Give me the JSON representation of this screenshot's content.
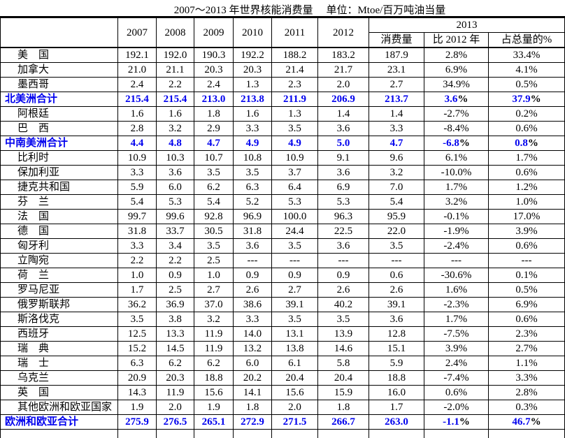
{
  "title": {
    "left": "2007～2013 年世界核能消费量",
    "right": "单位：Mtoe/百万吨油当量"
  },
  "colors": {
    "total_row_text": "#0000EE",
    "total_row_percent_sign": "#000000",
    "grid": "#000000"
  },
  "table": {
    "header": {
      "years": [
        "2007",
        "2008",
        "2009",
        "2010",
        "2011",
        "2012"
      ],
      "group_2013": "2013",
      "sub_columns": [
        "消费量",
        "比 2012 年",
        "占总量的%"
      ]
    },
    "rows": [
      {
        "name": "美　国",
        "total": false,
        "values": [
          "192.1",
          "192.0",
          "190.3",
          "192.2",
          "188.2",
          "183.2",
          "187.9",
          "2.8%",
          "33.4%"
        ]
      },
      {
        "name": "加拿大",
        "total": false,
        "values": [
          "21.0",
          "21.1",
          "20.3",
          "20.3",
          "21.4",
          "21.7",
          "23.1",
          "6.9%",
          "4.1%"
        ]
      },
      {
        "name": "墨西哥",
        "total": false,
        "values": [
          "2.4",
          "2.2",
          "2.4",
          "1.3",
          "2.3",
          "2.0",
          "2.7",
          "34.9%",
          "0.5%"
        ]
      },
      {
        "name": "北美洲合计",
        "total": true,
        "values": [
          "215.4",
          "215.4",
          "213.0",
          "213.8",
          "211.9",
          "206.9",
          "213.7",
          "3.6%",
          "37.9%"
        ]
      },
      {
        "name": "阿根廷",
        "total": false,
        "values": [
          "1.6",
          "1.6",
          "1.8",
          "1.6",
          "1.3",
          "1.4",
          "1.4",
          "-2.7%",
          "0.2%"
        ]
      },
      {
        "name": "巴　西",
        "total": false,
        "values": [
          "2.8",
          "3.2",
          "2.9",
          "3.3",
          "3.5",
          "3.6",
          "3.3",
          "-8.4%",
          "0.6%"
        ]
      },
      {
        "name": "中南美洲合计",
        "total": true,
        "values": [
          "4.4",
          "4.8",
          "4.7",
          "4.9",
          "4.9",
          "5.0",
          "4.7",
          "-6.8%",
          "0.8%"
        ]
      },
      {
        "name": "比利时",
        "total": false,
        "values": [
          "10.9",
          "10.3",
          "10.7",
          "10.8",
          "10.9",
          "9.1",
          "9.6",
          "6.1%",
          "1.7%"
        ]
      },
      {
        "name": "保加利亚",
        "total": false,
        "values": [
          "3.3",
          "3.6",
          "3.5",
          "3.5",
          "3.7",
          "3.6",
          "3.2",
          "-10.0%",
          "0.6%"
        ]
      },
      {
        "name": "捷克共和国",
        "total": false,
        "values": [
          "5.9",
          "6.0",
          "6.2",
          "6.3",
          "6.4",
          "6.9",
          "7.0",
          "1.7%",
          "1.2%"
        ]
      },
      {
        "name": "芬　兰",
        "total": false,
        "values": [
          "5.4",
          "5.3",
          "5.4",
          "5.2",
          "5.3",
          "5.3",
          "5.4",
          "3.2%",
          "1.0%"
        ]
      },
      {
        "name": "法　国",
        "total": false,
        "values": [
          "99.7",
          "99.6",
          "92.8",
          "96.9",
          "100.0",
          "96.3",
          "95.9",
          "-0.1%",
          "17.0%"
        ]
      },
      {
        "name": "德　国",
        "total": false,
        "values": [
          "31.8",
          "33.7",
          "30.5",
          "31.8",
          "24.4",
          "22.5",
          "22.0",
          "-1.9%",
          "3.9%"
        ]
      },
      {
        "name": "匈牙利",
        "total": false,
        "values": [
          "3.3",
          "3.4",
          "3.5",
          "3.6",
          "3.5",
          "3.6",
          "3.5",
          "-2.4%",
          "0.6%"
        ]
      },
      {
        "name": "立陶宛",
        "total": false,
        "values": [
          "2.2",
          "2.2",
          "2.5",
          "---",
          "---",
          "---",
          "---",
          "---",
          "---"
        ]
      },
      {
        "name": "荷　兰",
        "total": false,
        "values": [
          "1.0",
          "0.9",
          "1.0",
          "0.9",
          "0.9",
          "0.9",
          "0.6",
          "-30.6%",
          "0.1%"
        ]
      },
      {
        "name": "罗马尼亚",
        "total": false,
        "values": [
          "1.7",
          "2.5",
          "2.7",
          "2.6",
          "2.7",
          "2.6",
          "2.6",
          "1.6%",
          "0.5%"
        ]
      },
      {
        "name": "俄罗斯联邦",
        "total": false,
        "values": [
          "36.2",
          "36.9",
          "37.0",
          "38.6",
          "39.1",
          "40.2",
          "39.1",
          "-2.3%",
          "6.9%"
        ]
      },
      {
        "name": "斯洛伐克",
        "total": false,
        "values": [
          "3.5",
          "3.8",
          "3.2",
          "3.3",
          "3.5",
          "3.5",
          "3.6",
          "1.7%",
          "0.6%"
        ]
      },
      {
        "name": "西班牙",
        "total": false,
        "values": [
          "12.5",
          "13.3",
          "11.9",
          "14.0",
          "13.1",
          "13.9",
          "12.8",
          "-7.5%",
          "2.3%"
        ]
      },
      {
        "name": "瑞　典",
        "total": false,
        "values": [
          "15.2",
          "14.5",
          "11.9",
          "13.2",
          "13.8",
          "14.6",
          "15.1",
          "3.9%",
          "2.7%"
        ]
      },
      {
        "name": "瑞　士",
        "total": false,
        "values": [
          "6.3",
          "6.2",
          "6.2",
          "6.0",
          "6.1",
          "5.8",
          "5.9",
          "2.4%",
          "1.1%"
        ]
      },
      {
        "name": "乌克兰",
        "total": false,
        "values": [
          "20.9",
          "20.3",
          "18.8",
          "20.2",
          "20.4",
          "20.4",
          "18.8",
          "-7.4%",
          "3.3%"
        ]
      },
      {
        "name": "英　国",
        "total": false,
        "values": [
          "14.3",
          "11.9",
          "15.6",
          "14.1",
          "15.6",
          "15.9",
          "16.0",
          "0.6%",
          "2.8%"
        ]
      },
      {
        "name": "其他欧洲和欧亚国家",
        "total": false,
        "values": [
          "1.9",
          "2.0",
          "1.9",
          "1.8",
          "2.0",
          "1.8",
          "1.7",
          "-2.0%",
          "0.3%"
        ]
      },
      {
        "name": "欧洲和欧亚合计",
        "total": true,
        "values": [
          "275.9",
          "276.5",
          "265.1",
          "272.9",
          "271.5",
          "266.7",
          "263.0",
          "-1.1%",
          "46.7%"
        ]
      }
    ]
  }
}
